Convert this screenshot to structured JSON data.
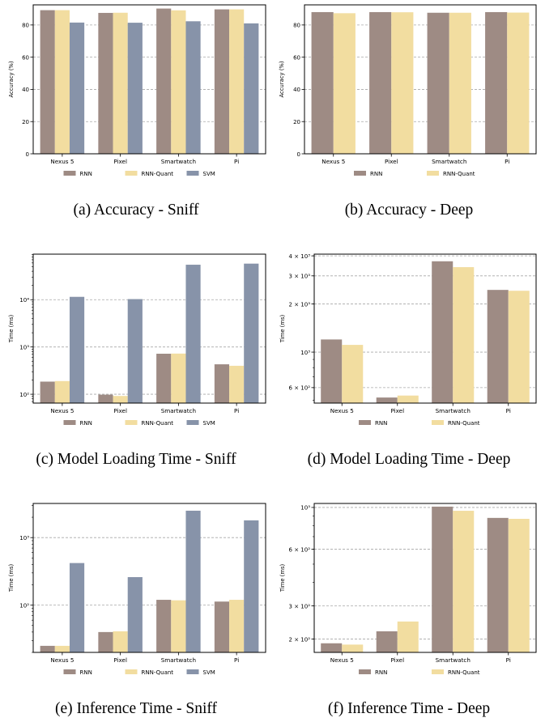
{
  "colors": {
    "RNN": "#9e8b84",
    "RNN-Quant": "#f2dda0",
    "SVM": "#8793a9"
  },
  "legend_swatch_colors": {
    "RNN": "#9e8b84",
    "RNN-Quant": "#f2dda0",
    "SVM": "#8793a9"
  },
  "chart_data": [
    {
      "id": "a",
      "type": "bar",
      "caption": "(a) Accuracy - Sniff",
      "categories": [
        "Nexus 5",
        "Pixel",
        "Smartwatch",
        "Pi"
      ],
      "ylabel": "Accuracy (%)",
      "yscale": "linear",
      "ylim": [
        0,
        92.5
      ],
      "yticks": [
        0,
        20,
        40,
        60,
        80
      ],
      "ytick_labels": [
        "0",
        "20",
        "40",
        "60",
        "80"
      ],
      "grid": true,
      "legend_position": "bottom",
      "series": [
        {
          "name": "RNN",
          "values": [
            89.2,
            87.5,
            90.2,
            89.7
          ]
        },
        {
          "name": "RNN-Quant",
          "values": [
            89.2,
            87.6,
            89.1,
            89.7
          ]
        },
        {
          "name": "SVM",
          "values": [
            81.5,
            81.4,
            82.3,
            81.0
          ]
        }
      ]
    },
    {
      "id": "b",
      "type": "bar",
      "caption": "(b) Accuracy - Deep",
      "categories": [
        "Nexus 5",
        "Pixel",
        "Smartwatch",
        "Pi"
      ],
      "ylabel": "Accuracy (%)",
      "yscale": "linear",
      "ylim": [
        0,
        92.5
      ],
      "yticks": [
        0,
        20,
        40,
        60,
        80
      ],
      "ytick_labels": [
        "0",
        "20",
        "40",
        "60",
        "80"
      ],
      "grid": true,
      "legend_position": "bottom",
      "series": [
        {
          "name": "RNN",
          "values": [
            88.0,
            88.0,
            87.6,
            88.0
          ]
        },
        {
          "name": "RNN-Quant",
          "values": [
            87.3,
            87.9,
            87.6,
            87.7
          ]
        }
      ]
    },
    {
      "id": "c",
      "type": "bar",
      "caption": "(c) Model Loading Time - Sniff",
      "categories": [
        "Nexus 5",
        "Pixel",
        "Smartwatch",
        "Pi"
      ],
      "ylabel": "Time (ms)",
      "yscale": "log",
      "ylim": [
        65,
        92000
      ],
      "yticks": [
        100,
        1000,
        10000
      ],
      "ytick_labels": [
        "10²",
        "10³",
        "10⁴"
      ],
      "grid": true,
      "legend_position": "bottom",
      "series": [
        {
          "name": "RNN",
          "values": [
            185,
            98,
            720,
            430
          ]
        },
        {
          "name": "RNN-Quant",
          "values": [
            190,
            92,
            725,
            400
          ]
        },
        {
          "name": "SVM",
          "values": [
            11500,
            10300,
            55000,
            58000
          ]
        }
      ]
    },
    {
      "id": "d",
      "type": "bar",
      "caption": "(d) Model Loading Time - Deep",
      "categories": [
        "Nexus 5",
        "Pixel",
        "Smartwatch",
        "Pi"
      ],
      "ylabel": "Time (ms)",
      "yscale": "log",
      "ylim": [
        480,
        4100
      ],
      "yticks": [
        600,
        1000,
        2000,
        3000,
        4000
      ],
      "ytick_labels": [
        "6 × 10²",
        "10³",
        "2 × 10³",
        "3 × 10³",
        "4 × 10³"
      ],
      "grid": true,
      "legend_position": "bottom",
      "series": [
        {
          "name": "RNN",
          "values": [
            1200,
            520,
            3700,
            2450
          ]
        },
        {
          "name": "RNN-Quant",
          "values": [
            1110,
            535,
            3400,
            2420
          ]
        }
      ]
    },
    {
      "id": "e",
      "type": "bar",
      "caption": "(e) Inference Time - Sniff",
      "categories": [
        "Nexus 5",
        "Pixel",
        "Smartwatch",
        "Pi"
      ],
      "ylabel": "Time (ms)",
      "yscale": "log",
      "ylim": [
        20,
        3200
      ],
      "yticks": [
        100,
        1000
      ],
      "ytick_labels": [
        "10²",
        "10³"
      ],
      "grid": true,
      "legend_position": "bottom",
      "series": [
        {
          "name": "RNN",
          "values": [
            25,
            40,
            120,
            113
          ]
        },
        {
          "name": "RNN-Quant",
          "values": [
            25,
            41,
            118,
            120
          ]
        },
        {
          "name": "SVM",
          "values": [
            420,
            260,
            2500,
            1800
          ]
        }
      ]
    },
    {
      "id": "f",
      "type": "bar",
      "caption": "(f) Inference Time - Deep",
      "categories": [
        "Nexus 5",
        "Pixel",
        "Smartwatch",
        "Pi"
      ],
      "ylabel": "Time (ms)",
      "yscale": "log",
      "ylim": [
        170,
        1050
      ],
      "yticks": [
        200,
        300,
        600,
        1000
      ],
      "ytick_labels": [
        "2 × 10²",
        "3 × 10²",
        "6 × 10²",
        "10³"
      ],
      "grid": true,
      "legend_position": "bottom",
      "series": [
        {
          "name": "RNN",
          "values": [
            190,
            220,
            1010,
            880
          ]
        },
        {
          "name": "RNN-Quant",
          "values": [
            187,
            248,
            960,
            870
          ]
        }
      ]
    }
  ]
}
